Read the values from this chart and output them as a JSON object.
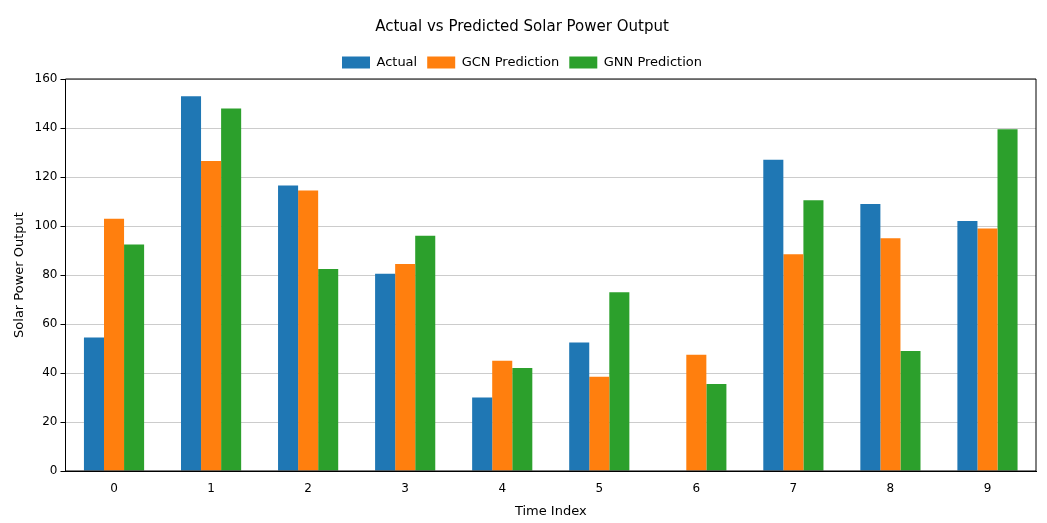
{
  "chart_data": {
    "type": "bar",
    "title": "Actual vs Predicted Solar Power Output",
    "xlabel": "Time Index",
    "ylabel": "Solar Power Output",
    "categories": [
      "0",
      "1",
      "2",
      "3",
      "4",
      "5",
      "6",
      "7",
      "8",
      "9"
    ],
    "series": [
      {
        "name": "Actual",
        "color": "#1f77b4",
        "values": [
          54.5,
          153,
          116.5,
          80.5,
          30,
          52.5,
          0,
          127,
          109,
          102
        ]
      },
      {
        "name": "GCN Prediction",
        "color": "#ff7f0e",
        "values": [
          103,
          126.5,
          114.5,
          84.5,
          45,
          38.5,
          47.5,
          88.5,
          95,
          99
        ]
      },
      {
        "name": "GNN Prediction",
        "color": "#2ca02c",
        "values": [
          92.5,
          148,
          82.5,
          96,
          42,
          73,
          35.5,
          110.5,
          49,
          139.5
        ]
      }
    ],
    "ylim": [
      0,
      160
    ],
    "yticks": [
      0,
      20,
      40,
      60,
      80,
      100,
      120,
      140,
      160
    ],
    "grid": "y",
    "legend": "top"
  }
}
